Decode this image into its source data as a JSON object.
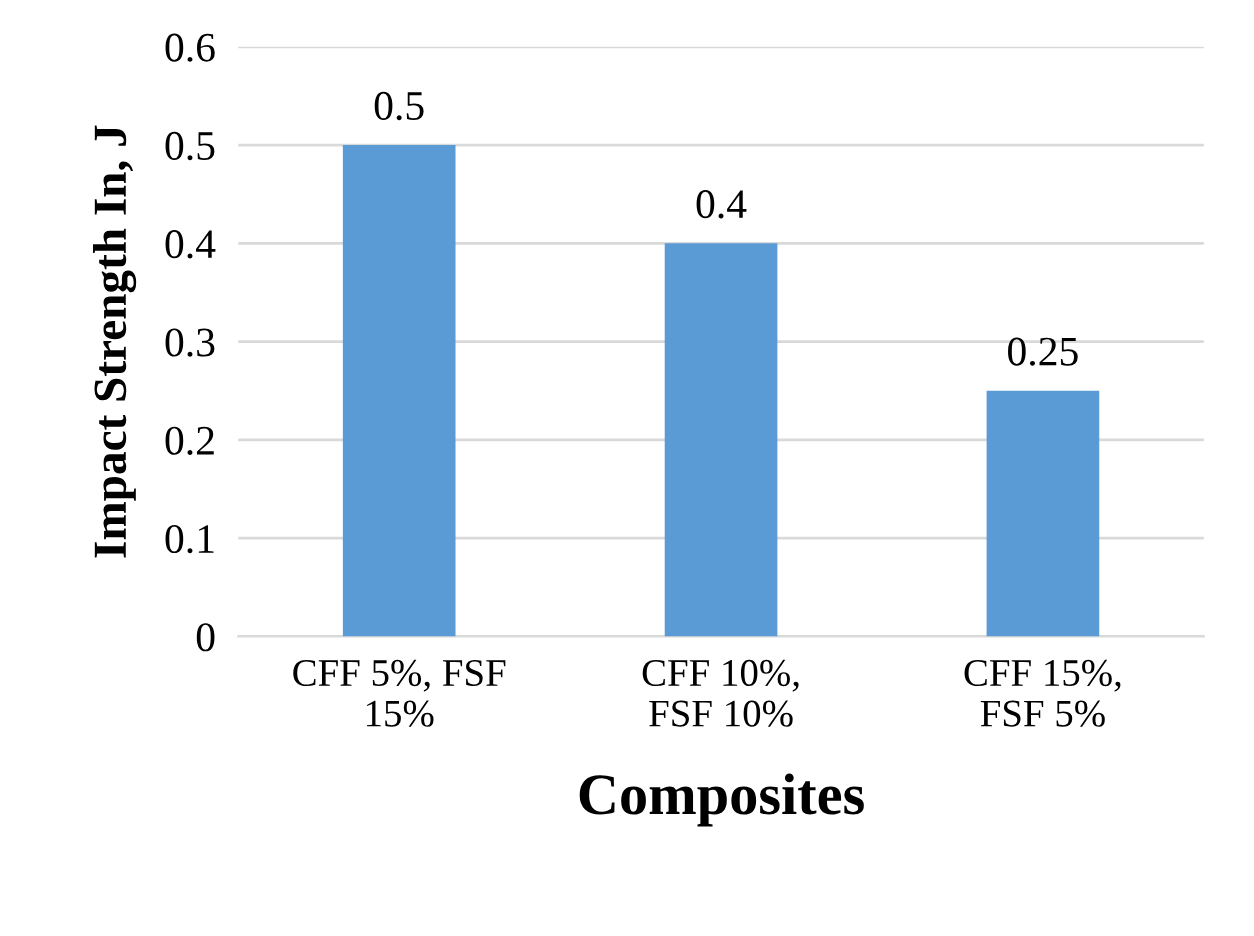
{
  "chart_data": {
    "type": "bar",
    "xlabel": "Composites",
    "ylabel": "Impact Strength In, J",
    "categories": [
      "CFF 5%, FSF\n15%",
      "CFF 10%,\nFSF 10%",
      "CFF 15%,\nFSF 5%"
    ],
    "values": [
      0.5,
      0.4,
      0.25
    ],
    "color": "#5b9bd5",
    "ylim": [
      0,
      0.6
    ],
    "yticks": [
      0,
      0.1,
      0.2,
      0.3,
      0.4,
      0.5,
      0.6
    ],
    "grid": "y",
    "data_labels": true
  }
}
